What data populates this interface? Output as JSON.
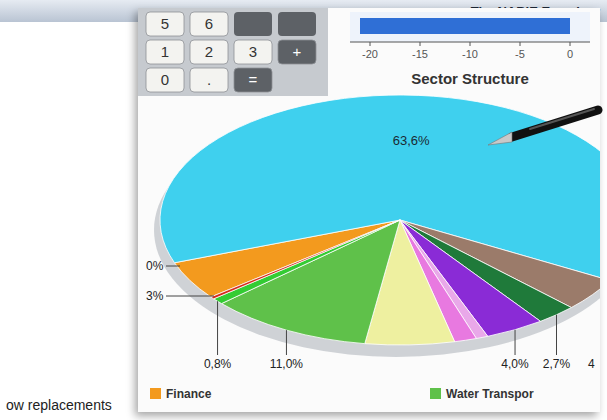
{
  "header": {
    "title": "The NABIE Examiner"
  },
  "article": {
    "text": "ow replacements"
  },
  "calculator": {
    "keys": [
      "5",
      "6",
      "1",
      "2",
      "3",
      "+",
      "0",
      ".",
      "="
    ]
  },
  "chart_data": [
    {
      "type": "pie",
      "title": "Sector Structure",
      "categories": [
        "Finance",
        null,
        null,
        null,
        null,
        null,
        null,
        null,
        "Water Transpor",
        null,
        null
      ],
      "values": [
        5.0,
        63.6,
        4.3,
        2.7,
        4.0,
        0.8,
        1.5,
        6.0,
        11.0,
        0.8,
        0.3
      ],
      "value_labels": [
        null,
        "63,6%",
        null,
        "2,7%",
        "4,0%",
        null,
        null,
        null,
        "11,0%",
        "0,8%",
        null
      ],
      "colors": [
        "#f39a1e",
        "#3fd0ee",
        "#9b7b6a",
        "#1f7a3a",
        "#8a2bd6",
        "#e9a8e9",
        "#e879e0",
        "#eef0a0",
        "#5fc14a",
        "#33cc33",
        "#d42a1a"
      ],
      "data_labels": true,
      "legend": "bottom",
      "annotations": [
        "0%",
        "3%",
        "4"
      ]
    },
    {
      "type": "bar",
      "orientation": "horizontal",
      "categories": [
        null
      ],
      "values": [
        -21
      ],
      "color": "#2f6fd6",
      "xlim": [
        -22,
        2
      ],
      "xticks": [
        -20,
        -15,
        -10,
        -5,
        0
      ],
      "grid": false
    }
  ]
}
